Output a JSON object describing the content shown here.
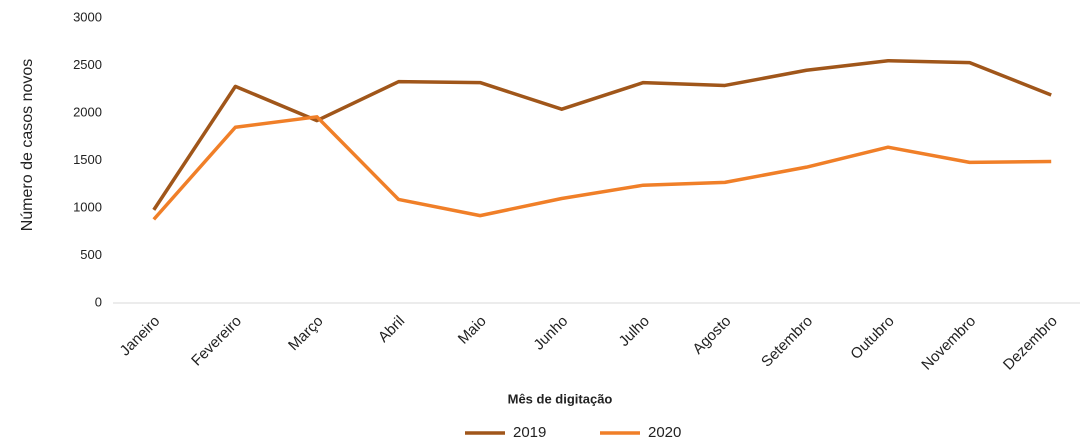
{
  "chart_data": {
    "type": "line",
    "x_label": "Mês de digitação",
    "y_label": "Número de casos novos",
    "categories": [
      "Janeiro",
      "Fevereiro",
      "Março",
      "Abril",
      "Maio",
      "Junho",
      "Julho",
      "Agosto",
      "Setembro",
      "Outubro",
      "Novembro",
      "Dezembro"
    ],
    "series": [
      {
        "name": "2019",
        "color": "#a0561a",
        "values": [
          980,
          2280,
          1920,
          2330,
          2320,
          2040,
          2320,
          2290,
          2450,
          2550,
          2530,
          2190
        ]
      },
      {
        "name": "2020",
        "color": "#f07f28",
        "values": [
          880,
          1850,
          1960,
          1090,
          920,
          1100,
          1240,
          1270,
          1430,
          1640,
          1480,
          1490
        ]
      }
    ],
    "ylim": [
      0,
      3000
    ],
    "yticks": [
      0,
      500,
      1000,
      1500,
      2000,
      2500,
      3000
    ],
    "grid": false,
    "legend": "bottom"
  }
}
